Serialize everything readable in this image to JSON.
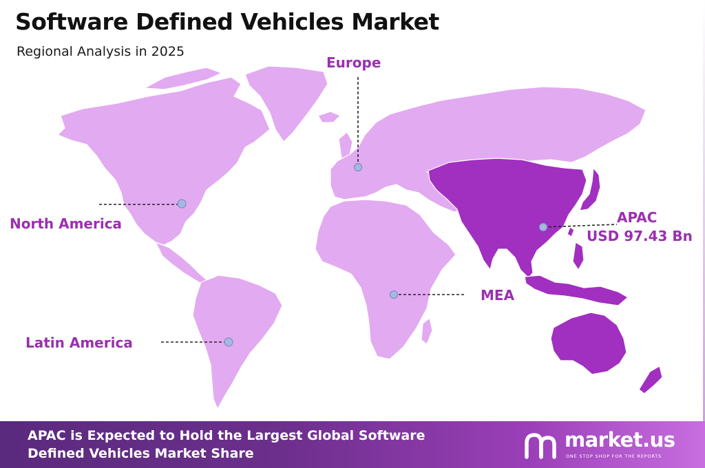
{
  "title": "Software Defined Vehicles Market",
  "subtitle": "Regional Analysis in 2025",
  "regions": {
    "europe": "Europe",
    "north_america": "North America",
    "latin_america": "Latin America",
    "mea": "MEA",
    "apac": "APAC",
    "apac_value": "USD 97.43 Bn"
  },
  "highlighted_region": "APAC",
  "colors": {
    "land_light": "#e2aaf0",
    "land_highlight": "#a12fc0",
    "label": "#9b2fb0",
    "marker": "#a9b6e0",
    "footer_start": "#5a2a7e",
    "footer_end": "#c86ee0"
  },
  "footer": {
    "line1": "APAC is Expected to Hold the Largest Global Software",
    "line2": "Defined Vehicles Market Share"
  },
  "brand": {
    "name": "market.us",
    "tagline": "ONE STOP SHOP FOR THE REPORTS"
  }
}
